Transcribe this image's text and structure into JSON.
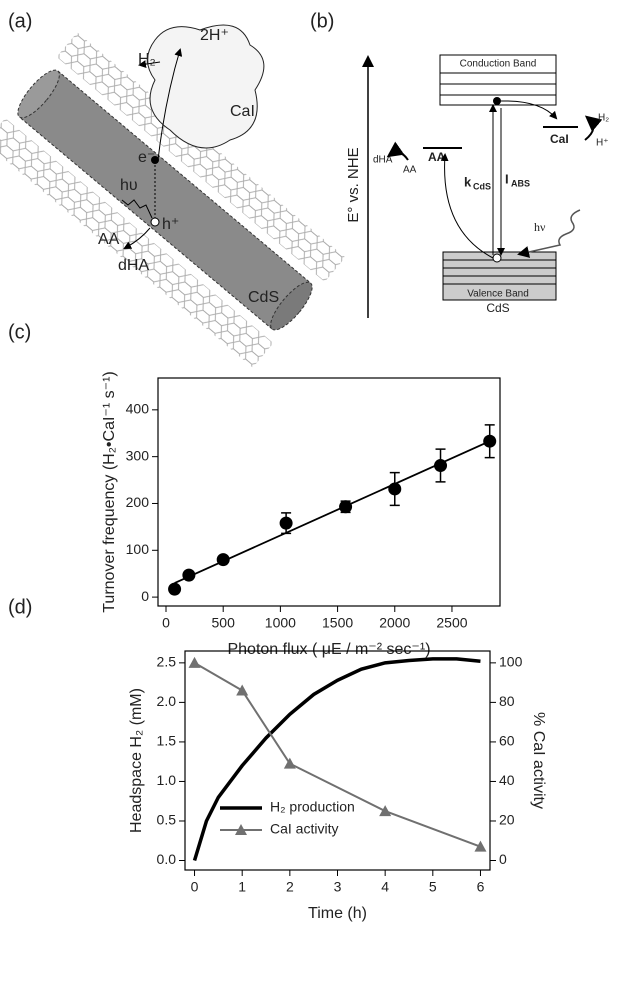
{
  "panel_a": {
    "label": "(a)",
    "h2": "H₂",
    "protons": "2H⁺",
    "cai": "CaI",
    "electron": "e⁻",
    "light": "hυ",
    "hole": "h⁺",
    "aa": "AA",
    "dha": "dHA",
    "cds": "CdS"
  },
  "panel_b": {
    "label": "(b)",
    "axis": "E° vs. NHE",
    "conduction": "Conduction Band",
    "valence": "Valence Band",
    "cds": "CdS",
    "cai": "CaI",
    "h2": "H₂",
    "hplus": "H⁺",
    "aa_level": "AA",
    "aa": "AA",
    "dha": "dHA",
    "kcds": "k",
    "kcds_sub": "CdS",
    "iabs": "I",
    "iabs_sub": "ABS",
    "light": "hν"
  },
  "chart_data": [
    {
      "type": "scatter",
      "panel_label": "(c)",
      "x_label": "Photon flux ( μE / m⁻² sec⁻¹)",
      "y_label": "Turnover frequency (H₂•CaI⁻¹ s⁻¹)",
      "series": [
        {
          "color": "#000000",
          "x": [
            75,
            200,
            500,
            1050,
            1570,
            2000,
            2400,
            2830
          ],
          "values": [
            17,
            47,
            80,
            158,
            193,
            231,
            281,
            333
          ],
          "errors": [
            4,
            5,
            6,
            22,
            12,
            35,
            35,
            35
          ]
        }
      ],
      "fit": {
        "color": "#000000",
        "x": [
          75,
          2830
        ],
        "values": [
          30,
          333
        ]
      },
      "xlim": [
        -70,
        2920
      ],
      "ylim": [
        -19,
        468
      ],
      "xticks": [
        0,
        500,
        1000,
        1500,
        2000,
        2500
      ],
      "yticks": [
        0,
        100,
        200,
        300,
        400
      ]
    },
    {
      "type": "line",
      "panel_label": "(d)",
      "x_label": "Time (h)",
      "y_label": "Headspace H₂ (mM)",
      "y2_label": "% CaI activity",
      "series": [
        {
          "name": "H₂ production",
          "color": "#000000",
          "x": [
            0,
            0.25,
            0.5,
            1,
            1.5,
            2,
            2.5,
            3,
            3.5,
            4,
            4.5,
            5,
            5.5,
            6
          ],
          "values": [
            0,
            0.5,
            0.8,
            1.2,
            1.55,
            1.85,
            2.1,
            2.28,
            2.42,
            2.5,
            2.53,
            2.55,
            2.55,
            2.52
          ]
        },
        {
          "name": "CaI activity",
          "color": "#707070",
          "axis": "y2",
          "marker": "triangle",
          "x": [
            0,
            1,
            2,
            4,
            6
          ],
          "values": [
            100,
            86,
            49,
            25,
            7
          ]
        }
      ],
      "xlim": [
        -0.2,
        6.2
      ],
      "ylim": [
        -0.12,
        2.65
      ],
      "y2lim": [
        -4.8,
        106
      ],
      "xticks": [
        0,
        1,
        2,
        3,
        4,
        5,
        6
      ],
      "yticks": [
        {
          "value": 0,
          "label": "0.0"
        },
        0.5,
        {
          "value": 1,
          "label": "1.0"
        },
        1.5,
        {
          "value": 2,
          "label": "2.0"
        },
        2.5
      ],
      "y2ticks": [
        0,
        20,
        40,
        60,
        80,
        100
      ],
      "legend": "lower left"
    }
  ]
}
